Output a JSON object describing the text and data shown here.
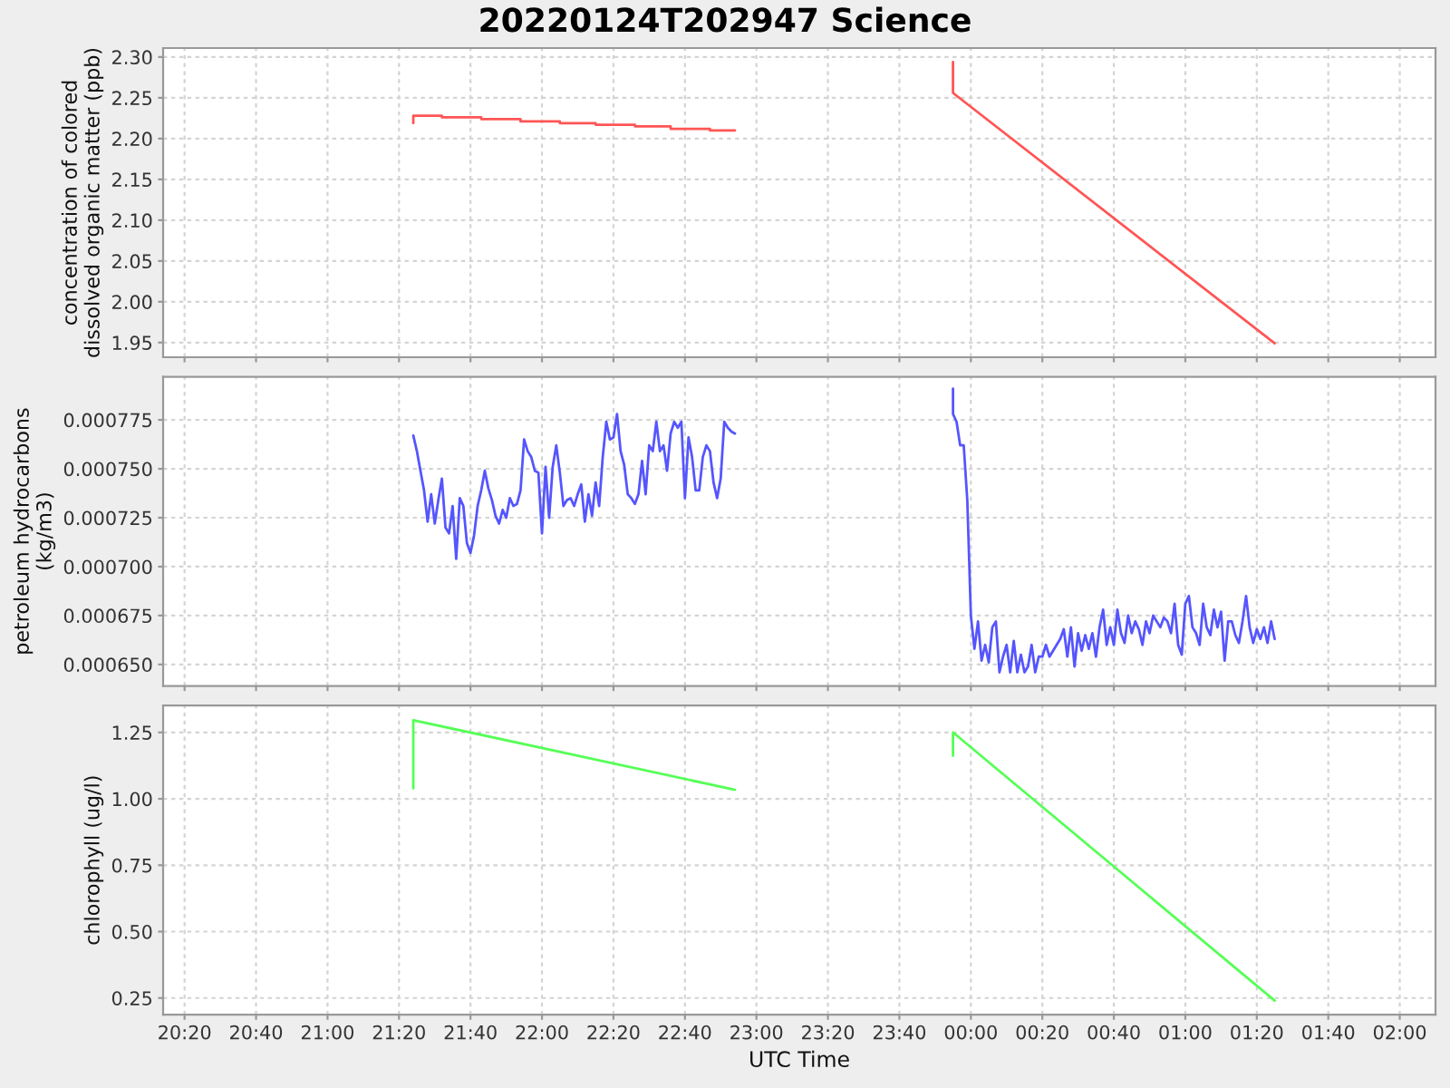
{
  "chart_data": [
    {
      "type": "line",
      "title": "20220124T202947 Science",
      "ylabel": "concentration of colored dissolved organic matter (ppb)",
      "xlim": [
        "2022-01-24T20:14",
        "2022-01-25T02:10"
      ],
      "xticks": [
        {
          "value": "2022-01-24T20:20",
          "label": null
        },
        {
          "value": "2022-01-24T20:40",
          "label": null
        },
        {
          "value": "2022-01-24T21:00",
          "label": null
        },
        {
          "value": "2022-01-24T21:20",
          "label": null
        },
        {
          "value": "2022-01-24T21:40",
          "label": null
        },
        {
          "value": "2022-01-24T22:00",
          "label": null
        },
        {
          "value": "2022-01-24T22:20",
          "label": null
        },
        {
          "value": "2022-01-24T22:40",
          "label": null
        },
        {
          "value": "2022-01-24T23:00",
          "label": null
        },
        {
          "value": "2022-01-24T23:20",
          "label": null
        },
        {
          "value": "2022-01-24T23:40",
          "label": null
        },
        {
          "value": "2022-01-25T00:00",
          "label": null
        },
        {
          "value": "2022-01-25T00:20",
          "label": null
        },
        {
          "value": "2022-01-25T00:40",
          "label": null
        },
        {
          "value": "2022-01-25T01:00",
          "label": null
        },
        {
          "value": "2022-01-25T01:20",
          "label": null
        },
        {
          "value": "2022-01-25T01:40",
          "label": null
        },
        {
          "value": "2022-01-25T02:00",
          "label": null
        }
      ],
      "ylim": [
        1.932,
        2.311
      ],
      "yticks": [
        1.95,
        {
          "value": 2.0,
          "label": "2.00"
        },
        2.05,
        {
          "value": 2.1,
          "label": "2.10"
        },
        2.15,
        {
          "value": 2.2,
          "label": "2.20"
        },
        2.25,
        {
          "value": 2.3,
          "label": "2.30"
        }
      ],
      "grid": true,
      "tick_labels": "y",
      "series": [
        {
          "color": "#ff5555",
          "x": [
            "2022-01-24T21:24",
            "2022-01-24T21:24",
            "2022-01-24T21:32",
            "2022-01-24T21:32",
            "2022-01-24T21:43",
            "2022-01-24T21:43",
            "2022-01-24T21:54",
            "2022-01-24T21:54",
            "2022-01-24T22:05",
            "2022-01-24T22:05",
            "2022-01-24T22:15",
            "2022-01-24T22:15",
            "2022-01-24T22:26",
            "2022-01-24T22:26",
            "2022-01-24T22:36",
            "2022-01-24T22:36",
            "2022-01-24T22:47",
            "2022-01-24T22:47",
            "2022-01-24T22:54"
          ],
          "values": [
            2.219,
            2.228,
            2.228,
            2.226,
            2.226,
            2.224,
            2.224,
            2.221,
            2.221,
            2.219,
            2.219,
            2.217,
            2.217,
            2.215,
            2.215,
            2.212,
            2.212,
            2.21,
            2.21
          ]
        },
        {
          "color": "#ff5555",
          "x": [
            "2022-01-24T23:55",
            "2022-01-24T23:55",
            "2022-01-25T01:25"
          ],
          "values": [
            2.294,
            2.256,
            1.949
          ]
        }
      ]
    },
    {
      "type": "line",
      "ylabel": "petroleum hydrocarbons (kg/m3)",
      "xlim": [
        "2022-01-24T20:14",
        "2022-01-25T02:10"
      ],
      "xticks": [
        {
          "value": "2022-01-24T20:20",
          "label": null
        },
        {
          "value": "2022-01-24T20:40",
          "label": null
        },
        {
          "value": "2022-01-24T21:00",
          "label": null
        },
        {
          "value": "2022-01-24T21:20",
          "label": null
        },
        {
          "value": "2022-01-24T21:40",
          "label": null
        },
        {
          "value": "2022-01-24T22:00",
          "label": null
        },
        {
          "value": "2022-01-24T22:20",
          "label": null
        },
        {
          "value": "2022-01-24T22:40",
          "label": null
        },
        {
          "value": "2022-01-24T23:00",
          "label": null
        },
        {
          "value": "2022-01-24T23:20",
          "label": null
        },
        {
          "value": "2022-01-24T23:40",
          "label": null
        },
        {
          "value": "2022-01-25T00:00",
          "label": null
        },
        {
          "value": "2022-01-25T00:20",
          "label": null
        },
        {
          "value": "2022-01-25T00:40",
          "label": null
        },
        {
          "value": "2022-01-25T01:00",
          "label": null
        },
        {
          "value": "2022-01-25T01:20",
          "label": null
        },
        {
          "value": "2022-01-25T01:40",
          "label": null
        },
        {
          "value": "2022-01-25T02:00",
          "label": null
        }
      ],
      "ylim": [
        0.000639,
        0.000797
      ],
      "yticks": [
        {
          "value": 0.00065,
          "label": "0.000650"
        },
        0.000675,
        {
          "value": 0.0007,
          "label": "0.000700"
        },
        0.000725,
        {
          "value": 0.00075,
          "label": "0.000750"
        },
        0.000775
      ],
      "grid": true,
      "tick_labels": "y",
      "series": [
        {
          "color": "#5555ff",
          "x": [
            "2022-01-24T21:24",
            "2022-01-24T21:25",
            "2022-01-24T21:26",
            "2022-01-24T21:27",
            "2022-01-24T21:28",
            "2022-01-24T21:29",
            "2022-01-24T21:30",
            "2022-01-24T21:31",
            "2022-01-24T21:32",
            "2022-01-24T21:33",
            "2022-01-24T21:34",
            "2022-01-24T21:35",
            "2022-01-24T21:36",
            "2022-01-24T21:37",
            "2022-01-24T21:38",
            "2022-01-24T21:39",
            "2022-01-24T21:40",
            "2022-01-24T21:41",
            "2022-01-24T21:42",
            "2022-01-24T21:43",
            "2022-01-24T21:44",
            "2022-01-24T21:45",
            "2022-01-24T21:46",
            "2022-01-24T21:47",
            "2022-01-24T21:48",
            "2022-01-24T21:49",
            "2022-01-24T21:50",
            "2022-01-24T21:51",
            "2022-01-24T21:52",
            "2022-01-24T21:53",
            "2022-01-24T21:54",
            "2022-01-24T21:55",
            "2022-01-24T21:56",
            "2022-01-24T21:57",
            "2022-01-24T21:58",
            "2022-01-24T21:59",
            "2022-01-24T22:00",
            "2022-01-24T22:01",
            "2022-01-24T22:02",
            "2022-01-24T22:03",
            "2022-01-24T22:04",
            "2022-01-24T22:05",
            "2022-01-24T22:06",
            "2022-01-24T22:07",
            "2022-01-24T22:08",
            "2022-01-24T22:09",
            "2022-01-24T22:10",
            "2022-01-24T22:11",
            "2022-01-24T22:12",
            "2022-01-24T22:13",
            "2022-01-24T22:14",
            "2022-01-24T22:15",
            "2022-01-24T22:16",
            "2022-01-24T22:17",
            "2022-01-24T22:18",
            "2022-01-24T22:19",
            "2022-01-24T22:20",
            "2022-01-24T22:21",
            "2022-01-24T22:22",
            "2022-01-24T22:23",
            "2022-01-24T22:24",
            "2022-01-24T22:25",
            "2022-01-24T22:26",
            "2022-01-24T22:27",
            "2022-01-24T22:28",
            "2022-01-24T22:29",
            "2022-01-24T22:30",
            "2022-01-24T22:31",
            "2022-01-24T22:32",
            "2022-01-24T22:33",
            "2022-01-24T22:34",
            "2022-01-24T22:35",
            "2022-01-24T22:36",
            "2022-01-24T22:37",
            "2022-01-24T22:38",
            "2022-01-24T22:39",
            "2022-01-24T22:40",
            "2022-01-24T22:41",
            "2022-01-24T22:42",
            "2022-01-24T22:43",
            "2022-01-24T22:44",
            "2022-01-24T22:45",
            "2022-01-24T22:46",
            "2022-01-24T22:47",
            "2022-01-24T22:48",
            "2022-01-24T22:49",
            "2022-01-24T22:50",
            "2022-01-24T22:51",
            "2022-01-24T22:52",
            "2022-01-24T22:53",
            "2022-01-24T22:54"
          ],
          "values": [
            0.000767,
            0.000759,
            0.000749,
            0.000739,
            0.000723,
            0.000737,
            0.000722,
            0.000734,
            0.000745,
            0.00072,
            0.000717,
            0.000731,
            0.000704,
            0.000735,
            0.000731,
            0.000712,
            0.000707,
            0.000716,
            0.000731,
            0.000739,
            0.000749,
            0.00074,
            0.000734,
            0.000726,
            0.000722,
            0.000729,
            0.000725,
            0.000735,
            0.000731,
            0.000732,
            0.000739,
            0.000765,
            0.000759,
            0.000756,
            0.000749,
            0.000748,
            0.000717,
            0.000751,
            0.000725,
            0.000751,
            0.000762,
            0.000748,
            0.000731,
            0.000734,
            0.000735,
            0.000731,
            0.000737,
            0.000742,
            0.000723,
            0.000737,
            0.000726,
            0.000743,
            0.000731,
            0.000756,
            0.000774,
            0.000765,
            0.000766,
            0.000778,
            0.000759,
            0.000752,
            0.000737,
            0.000735,
            0.000732,
            0.000737,
            0.000754,
            0.000737,
            0.000762,
            0.000759,
            0.000774,
            0.000759,
            0.000762,
            0.000749,
            0.000768,
            0.000774,
            0.000771,
            0.000774,
            0.000735,
            0.000766,
            0.000756,
            0.000739,
            0.000739,
            0.000756,
            0.000762,
            0.000759,
            0.000743,
            0.000735,
            0.000745,
            0.000774,
            0.000771,
            0.000769,
            0.000768
          ]
        },
        {
          "color": "#5555ff",
          "x": [
            "2022-01-24T23:55",
            "2022-01-24T23:55",
            "2022-01-24T23:56",
            "2022-01-24T23:57",
            "2022-01-24T23:58",
            "2022-01-24T23:59",
            "2022-01-25T00:00",
            "2022-01-25T00:01",
            "2022-01-25T00:02",
            "2022-01-25T00:03",
            "2022-01-25T00:04",
            "2022-01-25T00:05",
            "2022-01-25T00:06",
            "2022-01-25T00:07",
            "2022-01-25T00:08",
            "2022-01-25T00:09",
            "2022-01-25T00:10",
            "2022-01-25T00:11",
            "2022-01-25T00:12",
            "2022-01-25T00:13",
            "2022-01-25T00:14",
            "2022-01-25T00:15",
            "2022-01-25T00:16",
            "2022-01-25T00:17",
            "2022-01-25T00:18",
            "2022-01-25T00:19",
            "2022-01-25T00:20",
            "2022-01-25T00:21",
            "2022-01-25T00:22",
            "2022-01-25T00:23",
            "2022-01-25T00:24",
            "2022-01-25T00:25",
            "2022-01-25T00:26",
            "2022-01-25T00:27",
            "2022-01-25T00:28",
            "2022-01-25T00:29",
            "2022-01-25T00:30",
            "2022-01-25T00:31",
            "2022-01-25T00:32",
            "2022-01-25T00:33",
            "2022-01-25T00:34",
            "2022-01-25T00:35",
            "2022-01-25T00:36",
            "2022-01-25T00:37",
            "2022-01-25T00:38",
            "2022-01-25T00:39",
            "2022-01-25T00:40",
            "2022-01-25T00:41",
            "2022-01-25T00:42",
            "2022-01-25T00:43",
            "2022-01-25T00:44",
            "2022-01-25T00:45",
            "2022-01-25T00:46",
            "2022-01-25T00:47",
            "2022-01-25T00:48",
            "2022-01-25T00:49",
            "2022-01-25T00:50",
            "2022-01-25T00:51",
            "2022-01-25T00:52",
            "2022-01-25T00:53",
            "2022-01-25T00:54",
            "2022-01-25T00:55",
            "2022-01-25T00:56",
            "2022-01-25T00:57",
            "2022-01-25T00:58",
            "2022-01-25T00:59",
            "2022-01-25T01:00",
            "2022-01-25T01:01",
            "2022-01-25T01:02",
            "2022-01-25T01:03",
            "2022-01-25T01:04",
            "2022-01-25T01:05",
            "2022-01-25T01:06",
            "2022-01-25T01:07",
            "2022-01-25T01:08",
            "2022-01-25T01:09",
            "2022-01-25T01:10",
            "2022-01-25T01:11",
            "2022-01-25T01:12",
            "2022-01-25T01:13",
            "2022-01-25T01:14",
            "2022-01-25T01:15",
            "2022-01-25T01:16",
            "2022-01-25T01:17",
            "2022-01-25T01:18",
            "2022-01-25T01:19",
            "2022-01-25T01:20",
            "2022-01-25T01:21",
            "2022-01-25T01:22",
            "2022-01-25T01:23",
            "2022-01-25T01:24",
            "2022-01-25T01:25"
          ],
          "values": [
            0.000791,
            0.000778,
            0.000774,
            0.000762,
            0.000762,
            0.000734,
            0.000675,
            0.000658,
            0.000672,
            0.000652,
            0.00066,
            0.000651,
            0.000669,
            0.000672,
            0.000646,
            0.000654,
            0.00066,
            0.000646,
            0.000662,
            0.000646,
            0.000655,
            0.000646,
            0.000649,
            0.00066,
            0.000646,
            0.000654,
            0.000654,
            0.00066,
            0.000654,
            0.000657,
            0.00066,
            0.000663,
            0.000668,
            0.000654,
            0.000669,
            0.000649,
            0.000666,
            0.000657,
            0.000665,
            0.000658,
            0.000666,
            0.000654,
            0.000669,
            0.000678,
            0.00066,
            0.000669,
            0.00066,
            0.000678,
            0.000666,
            0.000661,
            0.000675,
            0.000666,
            0.000672,
            0.000668,
            0.00066,
            0.000672,
            0.000666,
            0.000675,
            0.000672,
            0.000669,
            0.000674,
            0.000672,
            0.000666,
            0.000681,
            0.00066,
            0.000655,
            0.000681,
            0.000685,
            0.000669,
            0.000666,
            0.00066,
            0.000681,
            0.000669,
            0.000665,
            0.000678,
            0.000669,
            0.000677,
            0.000652,
            0.000672,
            0.000672,
            0.000665,
            0.000661,
            0.000672,
            0.000685,
            0.000669,
            0.000661,
            0.000668,
            0.000663,
            0.000669,
            0.000661,
            0.000672,
            0.000663
          ]
        }
      ]
    },
    {
      "type": "line",
      "ylabel": "chlorophyll (ug/l)",
      "xlabel": "UTC Time",
      "xlim": [
        "2022-01-24T20:14",
        "2022-01-25T02:10"
      ],
      "xticks": [
        {
          "value": "2022-01-24T20:20",
          "label": "20:20"
        },
        {
          "value": "2022-01-24T20:40",
          "label": "20:40"
        },
        {
          "value": "2022-01-24T21:00",
          "label": "21:00"
        },
        {
          "value": "2022-01-24T21:20",
          "label": "21:20"
        },
        {
          "value": "2022-01-24T21:40",
          "label": "21:40"
        },
        {
          "value": "2022-01-24T22:00",
          "label": "22:00"
        },
        {
          "value": "2022-01-24T22:20",
          "label": "22:20"
        },
        {
          "value": "2022-01-24T22:40",
          "label": "22:40"
        },
        {
          "value": "2022-01-24T23:00",
          "label": "23:00"
        },
        {
          "value": "2022-01-24T23:20",
          "label": "23:20"
        },
        {
          "value": "2022-01-24T23:40",
          "label": "23:40"
        },
        {
          "value": "2022-01-25T00:00",
          "label": "00:00"
        },
        {
          "value": "2022-01-25T00:20",
          "label": "00:20"
        },
        {
          "value": "2022-01-25T00:40",
          "label": "00:40"
        },
        {
          "value": "2022-01-25T01:00",
          "label": "01:00"
        },
        {
          "value": "2022-01-25T01:20",
          "label": "01:20"
        },
        {
          "value": "2022-01-25T01:40",
          "label": "01:40"
        },
        {
          "value": "2022-01-25T02:00",
          "label": "02:00"
        }
      ],
      "ylim": [
        0.187,
        1.351
      ],
      "yticks": [
        0.25,
        {
          "value": 0.5,
          "label": "0.50"
        },
        0.75,
        {
          "value": 1.0,
          "label": "1.00"
        },
        1.25
      ],
      "grid": true,
      "series": [
        {
          "color": "#55ff55",
          "x": [
            "2022-01-24T21:24",
            "2022-01-24T21:24",
            "2022-01-24T22:54"
          ],
          "values": [
            1.039,
            1.296,
            1.034
          ]
        },
        {
          "color": "#55ff55",
          "x": [
            "2022-01-24T23:55",
            "2022-01-24T23:55",
            "2022-01-25T01:25"
          ],
          "values": [
            1.162,
            1.25,
            0.24
          ]
        }
      ]
    }
  ]
}
